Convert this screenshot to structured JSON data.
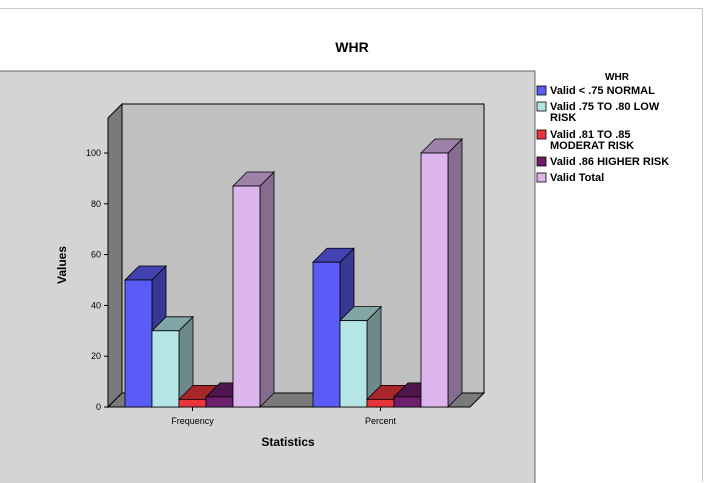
{
  "chart_data": {
    "type": "bar",
    "title": "WHR",
    "xlabel": "Statistics",
    "ylabel": "Values",
    "categories": [
      "Frequency",
      "Percent"
    ],
    "ylim": [
      0,
      100
    ],
    "yticks": [
      0,
      20,
      40,
      60,
      80,
      100
    ],
    "legend_title": "WHR",
    "legend_position": "right",
    "three_d": true,
    "series": [
      {
        "name": "Valid < .75 NORMAL",
        "values": [
          50,
          57
        ],
        "color": "#5b5bf7"
      },
      {
        "name": "Valid .75 TO .80 LOW RISK",
        "values": [
          30,
          34
        ],
        "color": "#b5e5e5"
      },
      {
        "name": "Valid .81 TO .85 MODERAT RISK",
        "values": [
          3,
          3
        ],
        "color": "#e8353b"
      },
      {
        "name": "Valid .86 HIGHER RISK",
        "values": [
          4,
          4
        ],
        "color": "#6e1f6b"
      },
      {
        "name": "Valid Total",
        "values": [
          87,
          100
        ],
        "color": "#dcb5ec"
      }
    ]
  }
}
